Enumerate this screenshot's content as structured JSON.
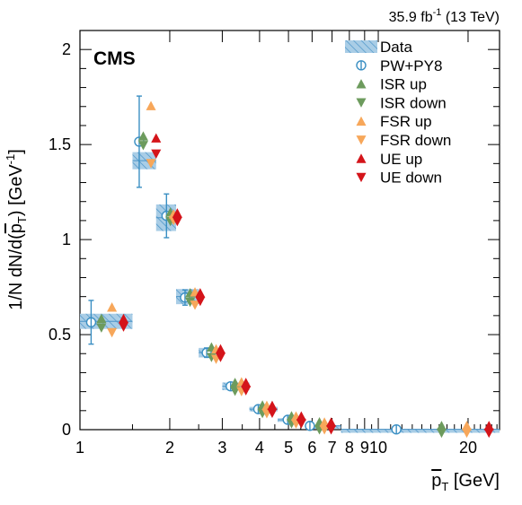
{
  "lumi_label": "35.9 fb",
  "lumi_exp": "-1",
  "lumi_energy": " (13 TeV)",
  "cms_label": "CMS",
  "ylabel_parts": {
    "main": "1/N dN/d(",
    "p": "p",
    "sub": "T",
    "close": ") [GeV",
    "exp": "-1",
    "end": "]"
  },
  "xlabel_parts": {
    "p": "p",
    "sub": "T",
    "rest": " [GeV]"
  },
  "chart_data": {
    "type": "scatter",
    "x_scale": "log",
    "xlim": [
      1,
      25.5
    ],
    "ylim": [
      0,
      2.1
    ],
    "grid": false,
    "legend_position": "top-right",
    "x_ticks": [
      {
        "v": 1,
        "label": "1"
      },
      {
        "v": 2,
        "label": "2"
      },
      {
        "v": 3,
        "label": "3"
      },
      {
        "v": 4,
        "label": "4"
      },
      {
        "v": 5,
        "label": "5"
      },
      {
        "v": 6,
        "label": "6"
      },
      {
        "v": 7,
        "label": "7"
      },
      {
        "v": 8,
        "label": "8"
      },
      {
        "v": 9,
        "label": "9"
      },
      {
        "v": 10,
        "label": "10"
      },
      {
        "v": 20,
        "label": "20"
      }
    ],
    "y_ticks": [
      {
        "v": 0,
        "label": "0"
      },
      {
        "v": 0.5,
        "label": "0.5"
      },
      {
        "v": 1,
        "label": "1"
      },
      {
        "v": 1.5,
        "label": "1.5"
      },
      {
        "v": 2,
        "label": "2"
      }
    ],
    "bins": [
      {
        "lo": 1.0,
        "hi": 1.5,
        "data": 0.57,
        "unc": 0.04
      },
      {
        "lo": 1.5,
        "hi": 1.8,
        "data": 1.415,
        "unc": 0.045
      },
      {
        "lo": 1.8,
        "hi": 2.1,
        "data": 1.115,
        "unc": 0.07
      },
      {
        "lo": 2.1,
        "hi": 2.5,
        "data": 0.7,
        "unc": 0.04
      },
      {
        "lo": 2.5,
        "hi": 3.0,
        "data": 0.405,
        "unc": 0.025
      },
      {
        "lo": 3.0,
        "hi": 3.7,
        "data": 0.228,
        "unc": 0.02
      },
      {
        "lo": 3.7,
        "hi": 4.6,
        "data": 0.108,
        "unc": 0.012
      },
      {
        "lo": 4.6,
        "hi": 5.7,
        "data": 0.052,
        "unc": 0.008
      },
      {
        "lo": 5.7,
        "hi": 7.5,
        "data": 0.02,
        "unc": 0.004
      },
      {
        "lo": 7.5,
        "hi": 25.5,
        "data": 0.0015,
        "unc": 0.0008
      }
    ],
    "series": [
      {
        "name": "PW+PY8",
        "marker": "circle-bar",
        "color": "#3a8fc3",
        "x": [
          1.09,
          1.58,
          1.95,
          2.25,
          2.66,
          3.2,
          3.96,
          4.97,
          5.9,
          11.5
        ],
        "values": [
          0.565,
          1.515,
          1.125,
          0.695,
          0.405,
          0.228,
          0.108,
          0.052,
          0.02,
          0.0015
        ],
        "errors": [
          0.115,
          0.24,
          0.115,
          0.04,
          0.025,
          0.02,
          0.012,
          0.008,
          0.004,
          0.0
        ]
      },
      {
        "name": "ISR up",
        "marker": "triangle-up",
        "color": "#6d9b5d",
        "x": [
          1.18,
          1.63,
          2.01,
          2.34,
          2.76,
          3.31,
          4.09,
          5.12,
          6.35,
          16.3
        ],
        "values": [
          0.565,
          1.525,
          1.125,
          0.7,
          0.415,
          0.228,
          0.11,
          0.053,
          0.021,
          0.0015
        ]
      },
      {
        "name": "ISR down",
        "marker": "triangle-down",
        "color": "#6d9b5d",
        "x": [
          1.18,
          1.63,
          2.01,
          2.34,
          2.76,
          3.31,
          4.09,
          5.12,
          6.35,
          16.3
        ],
        "values": [
          0.555,
          1.515,
          1.115,
          0.69,
          0.4,
          0.222,
          0.105,
          0.051,
          0.019,
          0.0015
        ]
      },
      {
        "name": "FSR up",
        "marker": "triangle-up",
        "color": "#f7a75a",
        "x": [
          1.28,
          1.73,
          2.06,
          2.43,
          2.86,
          3.48,
          4.23,
          5.3,
          6.6,
          19.8
        ],
        "values": [
          0.625,
          1.685,
          1.115,
          0.705,
          0.405,
          0.232,
          0.108,
          0.052,
          0.02,
          0.0015
        ]
      },
      {
        "name": "FSR down",
        "marker": "triangle-down",
        "color": "#f7a75a",
        "x": [
          1.28,
          1.73,
          2.06,
          2.43,
          2.86,
          3.48,
          4.23,
          5.3,
          6.6,
          19.8
        ],
        "values": [
          0.53,
          1.42,
          1.12,
          0.675,
          0.39,
          0.22,
          0.104,
          0.05,
          0.019,
          0.0015
        ]
      },
      {
        "name": "UE up",
        "marker": "triangle-up",
        "color": "#d4141a",
        "x": [
          1.4,
          1.8,
          2.12,
          2.53,
          2.96,
          3.6,
          4.41,
          5.52,
          6.95,
          23.5
        ],
        "values": [
          0.565,
          1.515,
          1.12,
          0.7,
          0.405,
          0.228,
          0.108,
          0.052,
          0.02,
          0.0015
        ]
      },
      {
        "name": "UE down",
        "marker": "triangle-down",
        "color": "#d4141a",
        "x": [
          1.4,
          1.8,
          2.12,
          2.53,
          2.96,
          3.6,
          4.41,
          5.52,
          6.95,
          23.5
        ],
        "values": [
          0.56,
          1.47,
          1.115,
          0.695,
          0.4,
          0.225,
          0.106,
          0.051,
          0.019,
          0.0015
        ]
      }
    ],
    "legend": [
      {
        "label": "Data",
        "marker": "box"
      },
      {
        "label": "PW+PY8",
        "marker": "circle-bar",
        "color": "#3a8fc3"
      },
      {
        "label": "ISR up",
        "marker": "triangle-up",
        "color": "#6d9b5d"
      },
      {
        "label": "ISR down",
        "marker": "triangle-down",
        "color": "#6d9b5d"
      },
      {
        "label": "FSR up",
        "marker": "triangle-up",
        "color": "#f7a75a"
      },
      {
        "label": "FSR down",
        "marker": "triangle-down",
        "color": "#f7a75a"
      },
      {
        "label": "UE up",
        "marker": "triangle-up",
        "color": "#d4141a"
      },
      {
        "label": "UE down",
        "marker": "triangle-down",
        "color": "#d4141a"
      }
    ],
    "colors": {
      "data_fill": "#a9cde6",
      "data_line": "#4a94c8"
    }
  }
}
